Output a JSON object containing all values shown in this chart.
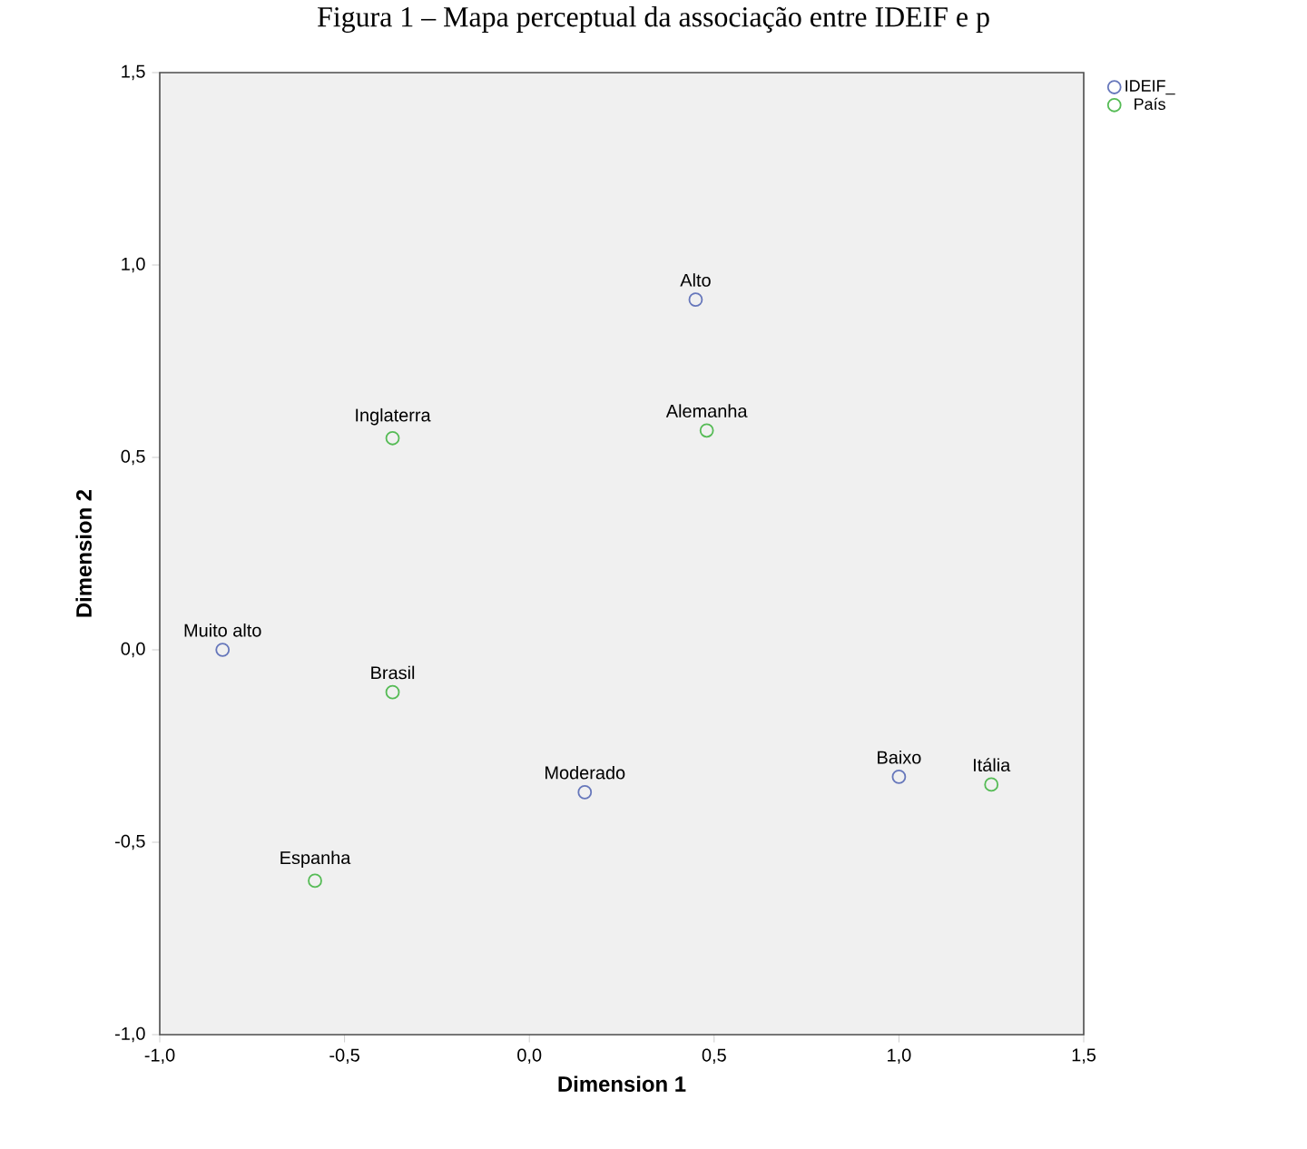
{
  "chart_data": {
    "type": "scatter",
    "title": "Figura 1 – Mapa perceptual da associação entre IDEIF e p",
    "xlabel": "Dimension 1",
    "ylabel": "Dimension 2",
    "xlim": [
      -1.0,
      1.5
    ],
    "ylim": [
      -1.0,
      1.5
    ],
    "xticks": [
      {
        "value": -1.0,
        "label": "-1,0"
      },
      {
        "value": -0.5,
        "label": "-0,5"
      },
      {
        "value": 0.0,
        "label": "0,0"
      },
      {
        "value": 0.5,
        "label": "0,5"
      },
      {
        "value": 1.0,
        "label": "1,0"
      },
      {
        "value": 1.5,
        "label": "1,5"
      }
    ],
    "yticks": [
      {
        "value": -1.0,
        "label": "-1,0"
      },
      {
        "value": -0.5,
        "label": "-0,5"
      },
      {
        "value": 0.0,
        "label": "0,0"
      },
      {
        "value": 0.5,
        "label": "0,5"
      },
      {
        "value": 1.0,
        "label": "1,0"
      },
      {
        "value": 1.5,
        "label": "1,5"
      }
    ],
    "series": [
      {
        "name": "IDEIF_",
        "color": "#6677bb",
        "x": [
          0.45,
          -0.83,
          0.15,
          1.0
        ],
        "values": [
          0.91,
          0.0,
          -0.37,
          -0.33
        ]
      },
      {
        "name": "País",
        "color": "#55bb55",
        "x": [
          -0.37,
          0.48,
          -0.37,
          -0.58,
          1.25
        ],
        "values": [
          0.55,
          0.57,
          -0.11,
          -0.6,
          -0.35
        ]
      }
    ],
    "annotations": [
      {
        "text": "Alto",
        "x": 0.45,
        "y": 0.91
      },
      {
        "text": "Muito alto",
        "x": -0.83,
        "y": 0.0
      },
      {
        "text": "Moderado",
        "x": 0.15,
        "y": -0.37
      },
      {
        "text": "Baixo",
        "x": 1.0,
        "y": -0.33
      },
      {
        "text": "Inglaterra",
        "x": -0.37,
        "y": 0.55
      },
      {
        "text": "Alemanha",
        "x": 0.48,
        "y": 0.57
      },
      {
        "text": "Brasil",
        "x": -0.37,
        "y": -0.11
      },
      {
        "text": "Espanha",
        "x": -0.58,
        "y": -0.6
      },
      {
        "text": "Itália",
        "x": 1.25,
        "y": -0.35
      }
    ],
    "legend": "top right",
    "marker": "circle",
    "grid": false
  }
}
